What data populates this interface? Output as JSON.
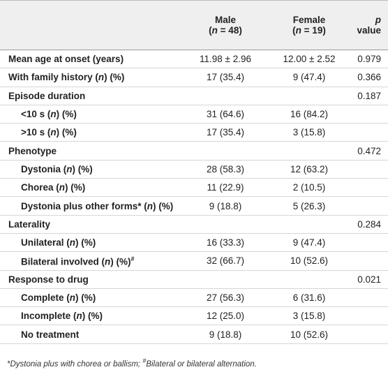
{
  "table": {
    "columns": [
      {
        "name": "Male",
        "count": [
          "(",
          "n",
          " = 48)"
        ]
      },
      {
        "name": "Female",
        "count": [
          "(",
          "n",
          " = 19)"
        ]
      },
      {
        "name": [
          "p",
          " value"
        ]
      }
    ],
    "rows": [
      {
        "label": [
          "Mean age at onset (years)"
        ],
        "male": "11.98 ± 2.96",
        "female": "12.00 ± 2.52",
        "p": "0.979"
      },
      {
        "label": [
          "With family history (",
          "n",
          ") (%)"
        ],
        "male": "17 (35.4)",
        "female": "9 (47.4)",
        "p": "0.366"
      },
      {
        "label": [
          "Episode duration"
        ],
        "p": "0.187",
        "items": [
          {
            "label": [
              "<10 s (",
              "n",
              ") (%)"
            ],
            "male": "31 (64.6)",
            "female": "16 (84.2)"
          },
          {
            "label": [
              ">10 s (",
              "n",
              ") (%)"
            ],
            "male": "17 (35.4)",
            "female": "3 (15.8)"
          }
        ]
      },
      {
        "label": [
          "Phenotype"
        ],
        "p": "0.472",
        "items": [
          {
            "label": [
              "Dystonia (",
              "n",
              ") (%)"
            ],
            "male": "28 (58.3)",
            "female": "12 (63.2)"
          },
          {
            "label": [
              "Chorea (",
              "n",
              ") (%)"
            ],
            "male": "11 (22.9)",
            "female": "2 (10.5)"
          },
          {
            "label": [
              "Dystonia plus other forms* (",
              "n",
              ") (%)"
            ],
            "male": "9 (18.8)",
            "female": "5 (26.3)"
          }
        ]
      },
      {
        "label": [
          "Laterality"
        ],
        "p": "0.284",
        "items": [
          {
            "label": [
              "Unilateral (",
              "n",
              ") (%)"
            ],
            "male": "16 (33.3)",
            "female": "9 (47.4)"
          },
          {
            "label": [
              "Bilateral involved (",
              "n",
              ") (%)"
            ],
            "sup": "#",
            "male": "32 (66.7)",
            "female": "10 (52.6)"
          }
        ]
      },
      {
        "label": [
          "Response to drug"
        ],
        "p": "0.021",
        "items": [
          {
            "label": [
              "Complete (",
              "n",
              ") (%)"
            ],
            "male": "27 (56.3)",
            "female": "6 (31.6)"
          },
          {
            "label": [
              "Incomplete (",
              "n",
              ") (%)"
            ],
            "male": "12 (25.0)",
            "female": "3 (15.8)"
          },
          {
            "label": [
              "No treatment"
            ],
            "male": "9 (18.8)",
            "female": "10 (52.6)"
          }
        ]
      }
    ],
    "footnote": [
      "*Dystonia plus with chorea or ballism; ",
      "#",
      "Bilateral or bilateral alternation."
    ]
  }
}
